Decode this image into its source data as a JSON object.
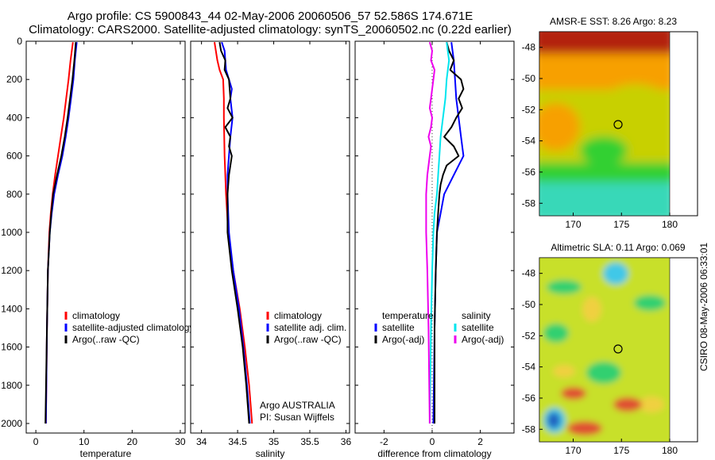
{
  "header": {
    "line1": "Argo profile: CS 5900843_44 02-May-2006 20060506_57 52.586S 174.671E",
    "line2": "Climatology: CARS2000. Satellite-adjusted climatology: synTS_20060502.nc (0.22d earlier)"
  },
  "colors": {
    "red": "#ff0000",
    "blue": "#0000ff",
    "black": "#000000",
    "cyan": "#00e5ee",
    "magenta": "#ee00ee"
  },
  "chart_data": [
    {
      "type": "line",
      "xlabel": "temperature",
      "ylim": [
        0,
        2050
      ],
      "xlim": [
        -2,
        31
      ],
      "yticks": [
        0,
        200,
        400,
        600,
        800,
        1000,
        1200,
        1400,
        1600,
        1800,
        2000
      ],
      "xticks": [
        0,
        10,
        20,
        30
      ],
      "legend": {
        "placement": "lower-right",
        "entries": [
          {
            "label": "climatology",
            "color": "red"
          },
          {
            "label": "satellite-adjusted climatology",
            "color": "blue"
          },
          {
            "label": "Argo(..raw -QC)",
            "color": "black"
          }
        ]
      },
      "series": [
        {
          "color": "red",
          "depth": [
            5,
            100,
            200,
            300,
            400,
            500,
            600,
            700,
            800,
            900,
            1000,
            1200,
            1500,
            2000
          ],
          "values": [
            7.7,
            7.2,
            6.8,
            6.3,
            5.8,
            5.2,
            4.6,
            4.0,
            3.5,
            3.1,
            2.8,
            2.5,
            2.3,
            2.1
          ]
        },
        {
          "color": "blue",
          "depth": [
            5,
            100,
            200,
            300,
            400,
            500,
            600,
            700,
            800,
            900,
            1000,
            1200,
            1500,
            2000
          ],
          "values": [
            8.5,
            8.1,
            7.8,
            7.3,
            6.8,
            6.2,
            5.5,
            4.6,
            3.8,
            3.3,
            2.9,
            2.5,
            2.3,
            2.1
          ]
        },
        {
          "color": "black",
          "depth": [
            5,
            100,
            200,
            300,
            400,
            500,
            600,
            700,
            800,
            900,
            1000,
            1200,
            1500,
            2000
          ],
          "values": [
            8.3,
            8.0,
            7.6,
            7.1,
            6.6,
            6.0,
            5.3,
            4.4,
            3.6,
            3.2,
            2.9,
            2.5,
            2.3,
            2.0
          ]
        }
      ]
    },
    {
      "type": "line",
      "xlabel": "salinity",
      "ylim": [
        0,
        2050
      ],
      "xlim": [
        33.85,
        36.05
      ],
      "xticks": [
        34,
        34.5,
        35,
        35.5,
        36
      ],
      "legend": {
        "placement": "lower-right",
        "entries": [
          {
            "label": "climatology",
            "color": "red"
          },
          {
            "label": "satellite adj. clim.",
            "color": "blue"
          },
          {
            "label": "Argo(..raw -QC)",
            "color": "black"
          }
        ]
      },
      "annotations": [
        "Argo AUSTRALIA",
        "PI: Susan Wijffels"
      ],
      "series": [
        {
          "color": "red",
          "depth": [
            5,
            100,
            150,
            200,
            300,
            400,
            600,
            800,
            1000,
            1200,
            1400,
            1600,
            1800,
            2000
          ],
          "values": [
            34.18,
            34.22,
            34.25,
            34.3,
            34.31,
            34.31,
            34.32,
            34.34,
            34.37,
            34.44,
            34.53,
            34.6,
            34.66,
            34.7
          ]
        },
        {
          "color": "blue",
          "depth": [
            5,
            50,
            100,
            150,
            200,
            250,
            300,
            400,
            500,
            600,
            700,
            800,
            1000,
            1200,
            1400,
            1600,
            1800,
            2000
          ],
          "values": [
            34.28,
            34.32,
            34.33,
            34.34,
            34.38,
            34.42,
            34.4,
            34.43,
            34.4,
            34.38,
            34.36,
            34.36,
            34.38,
            34.44,
            34.52,
            34.58,
            34.63,
            34.67
          ]
        },
        {
          "color": "black",
          "depth": [
            5,
            50,
            100,
            150,
            200,
            300,
            350,
            400,
            450,
            500,
            550,
            600,
            700,
            800,
            1000,
            1200,
            1400,
            1600,
            1800,
            2000
          ],
          "values": [
            34.25,
            34.27,
            34.33,
            34.32,
            34.38,
            34.4,
            34.36,
            34.43,
            34.33,
            34.4,
            34.38,
            34.42,
            34.38,
            34.36,
            34.36,
            34.42,
            34.5,
            34.57,
            34.62,
            34.66
          ]
        }
      ]
    },
    {
      "type": "line",
      "xlabel": "difference from climatology",
      "ylim": [
        0,
        2050
      ],
      "xlim": [
        -3.2,
        3.4
      ],
      "xticks": [
        -2,
        0,
        2
      ],
      "zero_line": true,
      "legend": {
        "placement": "lower-right",
        "groups": [
          {
            "heading": "temperature",
            "entries": [
              {
                "label": "satellite",
                "color": "blue"
              },
              {
                "label": "Argo(-adj)",
                "color": "black"
              }
            ]
          },
          {
            "heading": "salinity",
            "entries": [
              {
                "label": "satellite",
                "color": "cyan"
              },
              {
                "label": "Argo(-adj)",
                "color": "magenta"
              }
            ]
          }
        ]
      },
      "series": [
        {
          "color": "blue",
          "depth": [
            5,
            100,
            200,
            300,
            400,
            500,
            600,
            700,
            800,
            900,
            1000,
            1200,
            1500,
            2000
          ],
          "values": [
            0.8,
            0.9,
            0.95,
            1.0,
            1.1,
            1.2,
            1.3,
            0.9,
            0.5,
            0.35,
            0.2,
            0.15,
            0.1,
            0.05
          ]
        },
        {
          "color": "black",
          "depth": [
            5,
            50,
            100,
            150,
            200,
            250,
            300,
            350,
            400,
            450,
            500,
            550,
            600,
            650,
            700,
            750,
            800,
            900,
            1000,
            1200,
            1500,
            2000
          ],
          "values": [
            0.6,
            0.7,
            0.9,
            0.75,
            1.2,
            1.3,
            1.1,
            1.25,
            1.0,
            0.8,
            0.5,
            0.9,
            1.1,
            0.6,
            0.45,
            0.35,
            0.3,
            0.25,
            0.2,
            0.15,
            0.1,
            0.1
          ]
        },
        {
          "color": "cyan",
          "depth": [
            5,
            100,
            200,
            300,
            400,
            500,
            600,
            700,
            800,
            900,
            1000,
            1200,
            1500,
            2000
          ],
          "values": [
            0.6,
            0.7,
            0.6,
            0.55,
            0.45,
            0.35,
            0.3,
            0.25,
            0.2,
            0.1,
            0.05,
            0.0,
            -0.05,
            -0.1
          ]
        },
        {
          "color": "magenta",
          "depth": [
            5,
            50,
            100,
            150,
            200,
            250,
            300,
            350,
            400,
            450,
            500,
            550,
            600,
            700,
            800,
            900,
            1000,
            1200,
            1500,
            2000
          ],
          "values": [
            -0.1,
            0.0,
            -0.05,
            0.1,
            0.05,
            0.0,
            -0.05,
            -0.1,
            0.0,
            -0.05,
            -0.15,
            -0.05,
            -0.1,
            -0.2,
            -0.25,
            -0.25,
            -0.25,
            -0.2,
            -0.15,
            -0.1
          ]
        }
      ]
    }
  ],
  "maps": [
    {
      "title": "AMSR-E SST: 8.26 Argo: 8.23",
      "xticks": [
        "170",
        "175",
        "180"
      ],
      "yticks": [
        "-48",
        "-50",
        "-52",
        "-54",
        "-56",
        "-58"
      ],
      "colors": {
        "top": "#b3200a",
        "upper": "#f7a000",
        "middle": "#c8d000",
        "lower": "#30d030",
        "bottom": "#38d8b8"
      }
    },
    {
      "title": "Altimetric SLA: 0.11 Argo: 0.069",
      "xticks": [
        "170",
        "175",
        "180"
      ],
      "yticks": [
        "-48",
        "-50",
        "-52",
        "-54",
        "-56",
        "-58"
      ],
      "colors": {
        "base": "#c8e02a",
        "green": "#30d070",
        "yellow": "#f0d040",
        "red": "#e05030",
        "cyan": "#40c8e8",
        "blue": "#2060c0"
      }
    }
  ],
  "credit": "CSIRO 08-May-2006 06:33:01"
}
